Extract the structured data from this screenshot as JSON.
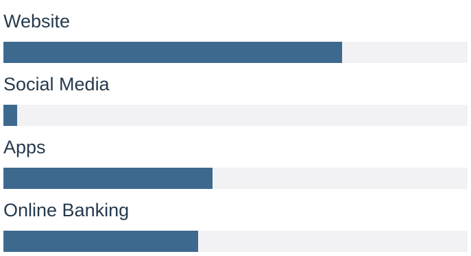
{
  "chart_data": {
    "type": "bar",
    "orientation": "horizontal",
    "categories": [
      "Website",
      "Social Media",
      "Apps",
      "Online Banking"
    ],
    "values": [
      73,
      3,
      45,
      42
    ],
    "xlim": [
      0,
      100
    ],
    "title": "",
    "xlabel": "",
    "ylabel": "",
    "grid": false,
    "legend": "none",
    "colors": {
      "bar": "#3e698f",
      "track": "#f2f2f4",
      "label": "#253a4d"
    }
  }
}
